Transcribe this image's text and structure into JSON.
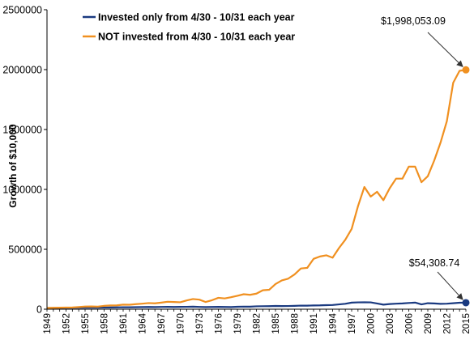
{
  "chart_data": {
    "type": "line",
    "title": "",
    "xlabel": "",
    "ylabel": "Growth of $10,000",
    "ylim": [
      0,
      2500000
    ],
    "y_ticks": [
      0,
      500000,
      1000000,
      1500000,
      2000000,
      2500000
    ],
    "y_tick_labels": [
      "0",
      "500000",
      "1000000",
      "1500000",
      "2000000",
      "2500000"
    ],
    "xlim": [
      1949,
      2015
    ],
    "x_ticks": [
      1949,
      1952,
      1955,
      1958,
      1961,
      1964,
      1967,
      1970,
      1973,
      1976,
      1979,
      1982,
      1985,
      1988,
      1991,
      1994,
      1997,
      2000,
      2003,
      2006,
      2009,
      2012,
      2015
    ],
    "x_tick_labels": [
      "1949",
      "1952",
      "1955",
      "1958",
      "1961",
      "1964",
      "1967",
      "1970",
      "1973",
      "1976",
      "1979",
      "1982",
      "1985",
      "1988",
      "1991",
      "1994",
      "1997",
      "2000",
      "2003",
      "2006",
      "2009",
      "2012",
      "2015"
    ],
    "grid": false,
    "legend_position": "top-left",
    "x": [
      1949,
      1950,
      1951,
      1952,
      1953,
      1954,
      1955,
      1956,
      1957,
      1958,
      1959,
      1960,
      1961,
      1962,
      1963,
      1964,
      1965,
      1966,
      1967,
      1968,
      1969,
      1970,
      1971,
      1972,
      1973,
      1974,
      1975,
      1976,
      1977,
      1978,
      1979,
      1980,
      1981,
      1982,
      1983,
      1984,
      1985,
      1986,
      1987,
      1988,
      1989,
      1990,
      1991,
      1992,
      1993,
      1994,
      1995,
      1996,
      1997,
      1998,
      1999,
      2000,
      2001,
      2002,
      2003,
      2004,
      2005,
      2006,
      2007,
      2008,
      2009,
      2010,
      2011,
      2012,
      2013,
      2014,
      2015
    ],
    "series": [
      {
        "name": "Invested only from 4/30 - 10/31 each year",
        "color": "#1a3a80",
        "values": [
          10000,
          10500,
          11000,
          11500,
          11500,
          12500,
          13500,
          13500,
          13000,
          14000,
          14500,
          15000,
          16500,
          16000,
          17000,
          18000,
          18500,
          17500,
          19000,
          19500,
          18500,
          19500,
          20000,
          21000,
          19000,
          17500,
          18500,
          19500,
          18500,
          18000,
          20500,
          21500,
          21000,
          24000,
          25000,
          25500,
          27000,
          26000,
          26500,
          28000,
          30000,
          29500,
          31500,
          32000,
          34000,
          35000,
          40000,
          45000,
          55000,
          57000,
          58000,
          57000,
          48000,
          38000,
          43000,
          46000,
          48000,
          52000,
          55000,
          40000,
          50000,
          48000,
          45000,
          46000,
          50000,
          54000,
          54308.74
        ]
      },
      {
        "name": "NOT invested from 4/30 - 10/31 each year",
        "color": "#f09020",
        "values": [
          10000,
          12000,
          12500,
          14000,
          14500,
          18000,
          22000,
          23000,
          21000,
          28000,
          31000,
          32000,
          38000,
          37000,
          42000,
          46000,
          51000,
          49000,
          55000,
          62000,
          60000,
          58000,
          73000,
          85000,
          80000,
          60000,
          75000,
          95000,
          90000,
          100000,
          112000,
          125000,
          120000,
          130000,
          158000,
          162000,
          210000,
          240000,
          255000,
          290000,
          340000,
          345000,
          420000,
          440000,
          450000,
          430000,
          510000,
          580000,
          670000,
          860000,
          1020000,
          940000,
          980000,
          910000,
          1010000,
          1090000,
          1090000,
          1190000,
          1190000,
          1060000,
          1110000,
          1240000,
          1390000,
          1570000,
          1890000,
          1990000,
          1998053.09
        ]
      }
    ],
    "annotations": [
      {
        "text": "$1,998,053.09",
        "series": 1,
        "x": 2015,
        "y": 1998053.09
      },
      {
        "text": "$54,308.74",
        "series": 0,
        "x": 2015,
        "y": 54308.74
      }
    ]
  }
}
